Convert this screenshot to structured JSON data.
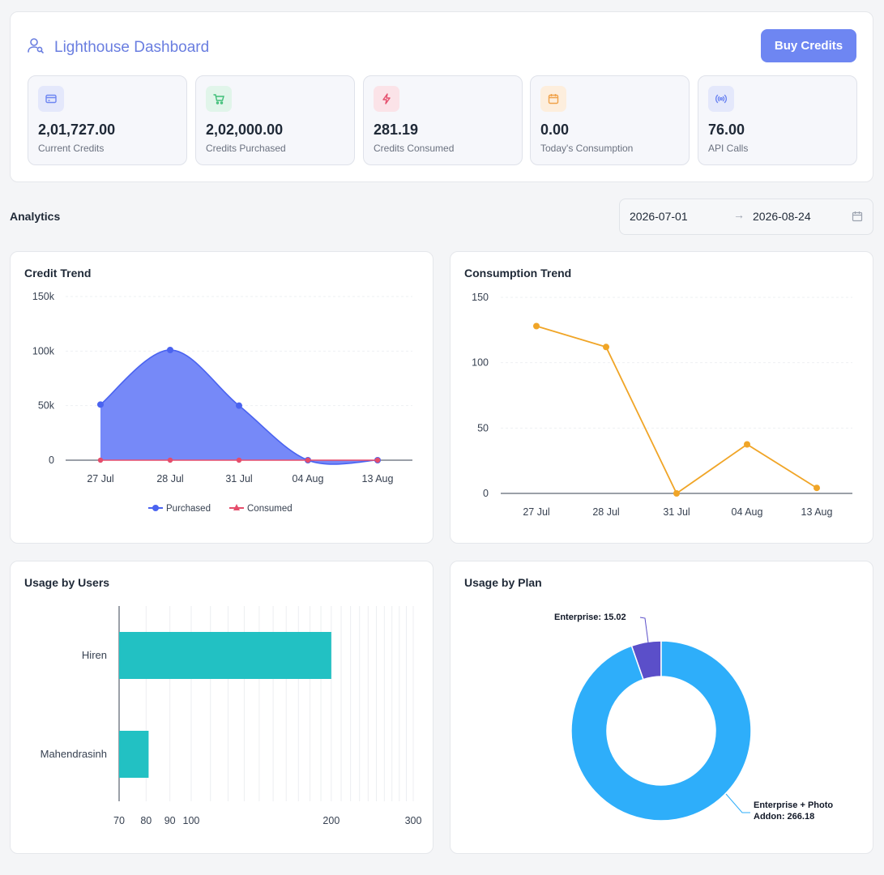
{
  "header": {
    "title": "Lighthouse Dashboard",
    "buy_button": "Buy Credits",
    "brand_color": "#6a7ee0",
    "icon": "user-search-icon"
  },
  "stats": [
    {
      "value": "2,01,727.00",
      "label": "Current Credits",
      "icon": "credit-card-icon",
      "bg": "#e4e8fb",
      "color": "#6e86f2"
    },
    {
      "value": "2,02,000.00",
      "label": "Credits Purchased",
      "icon": "cart-icon",
      "bg": "#e1f5ea",
      "color": "#3fbf78"
    },
    {
      "value": "281.19",
      "label": "Credits Consumed",
      "icon": "lightning-icon",
      "bg": "#fbe3e8",
      "color": "#e5506e"
    },
    {
      "value": "0.00",
      "label": "Today's Consumption",
      "icon": "calendar-icon",
      "bg": "#fdeedd",
      "color": "#f0a24a"
    },
    {
      "value": "76.00",
      "label": "API Calls",
      "icon": "broadcast-icon",
      "bg": "#e4e8fb",
      "color": "#6e86f2"
    }
  ],
  "analytics": {
    "title": "Analytics",
    "date_start": "2026-07-01",
    "date_end": "2026-08-24",
    "arrow": "→"
  },
  "chart_data": [
    {
      "type": "area",
      "title": "Credit Trend",
      "categories": [
        "27 Jul",
        "28 Jul",
        "31 Jul",
        "04 Aug",
        "13 Aug"
      ],
      "yticks": [
        "0",
        "50k",
        "100k",
        "150k"
      ],
      "ylim": [
        0,
        150000
      ],
      "series": [
        {
          "name": "Purchased",
          "values": [
            51000,
            101000,
            50000,
            0,
            0
          ],
          "color": "#4a63f0"
        },
        {
          "name": "Consumed",
          "values": [
            0,
            0,
            0,
            0,
            0
          ],
          "color": "#e54d6b"
        }
      ],
      "legend": "bottom"
    },
    {
      "type": "line",
      "title": "Consumption Trend",
      "categories": [
        "27 Jul",
        "28 Jul",
        "31 Jul",
        "04 Aug",
        "13 Aug"
      ],
      "yticks": [
        "0",
        "50",
        "100",
        "150"
      ],
      "ylim": [
        0,
        150
      ],
      "series": [
        {
          "values": [
            128,
            112,
            0,
            37.5,
            4.2
          ],
          "color": "#f0a527"
        }
      ]
    },
    {
      "type": "bar",
      "title": "Usage by Users",
      "orientation": "horizontal",
      "x_scale": "log",
      "categories": [
        "Hiren",
        "Mahendrasinh"
      ],
      "values": [
        200,
        81
      ],
      "xticks": [
        "70",
        "80",
        "90",
        "100",
        "200",
        "300"
      ],
      "xlim": [
        70,
        300
      ],
      "color": "#22c1c3"
    },
    {
      "type": "pie",
      "title": "Usage by Plan",
      "donut": true,
      "slices": [
        {
          "label": "Enterprise: 15.02",
          "value": 15.02,
          "color": "#5b4fc9"
        },
        {
          "label_line1": "Enterprise + Photo",
          "label_line2": "Addon: 266.18",
          "value": 266.18,
          "color": "#2eaefa"
        }
      ]
    }
  ]
}
